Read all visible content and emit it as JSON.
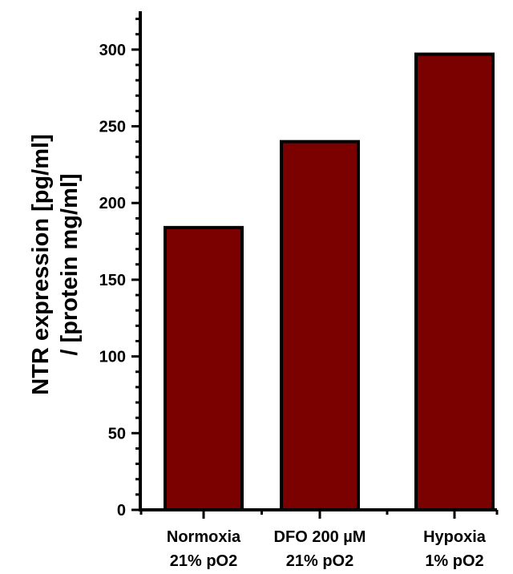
{
  "chart_data": {
    "type": "bar",
    "categories": [
      [
        "Normoxia",
        "21% pO2"
      ],
      [
        "DFO 200 µM",
        "21% pO2"
      ],
      [
        "Hypoxia",
        "1% pO2"
      ]
    ],
    "values": [
      184,
      240,
      297
    ],
    "ylabel": [
      "NTR expression [pg/ml]",
      "/ [protein mg/ml]"
    ],
    "ylim": [
      0,
      325
    ],
    "yticks": [
      0,
      50,
      100,
      150,
      200,
      250,
      300
    ],
    "minor_tick_step": 10,
    "bar_color": "#7b0000",
    "grid": false,
    "legend": "none"
  }
}
